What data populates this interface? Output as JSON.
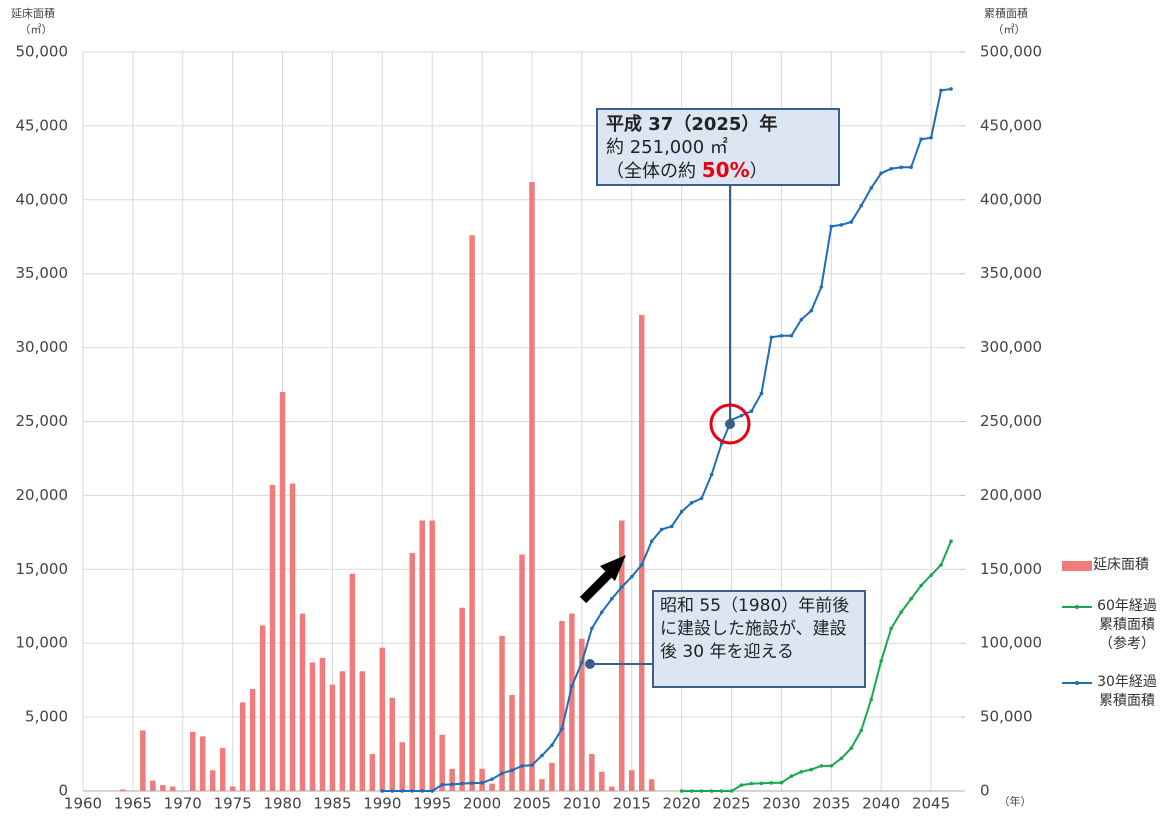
{
  "chart_data": {
    "type": "bar",
    "y_label": "延床面積",
    "y_unit": "（㎡）",
    "y2_label": "累積面積",
    "y2_unit": "（㎡）",
    "x_unit": "（年）",
    "x": [
      1960,
      1961,
      1962,
      1963,
      1964,
      1965,
      1966,
      1967,
      1968,
      1969,
      1970,
      1971,
      1972,
      1973,
      1974,
      1975,
      1976,
      1977,
      1978,
      1979,
      1980,
      1981,
      1982,
      1983,
      1984,
      1985,
      1986,
      1987,
      1988,
      1989,
      1990,
      1991,
      1992,
      1993,
      1994,
      1995,
      1996,
      1997,
      1998,
      1999,
      2000,
      2001,
      2002,
      2003,
      2004,
      2005,
      2006,
      2007,
      2008,
      2009,
      2010,
      2011,
      2012,
      2013,
      2014,
      2015,
      2016,
      2017,
      2018,
      2019,
      2020,
      2021,
      2022,
      2023,
      2024,
      2025,
      2026,
      2027,
      2028,
      2029,
      2030,
      2031,
      2032,
      2033,
      2034,
      2035,
      2036,
      2037,
      2038,
      2039,
      2040,
      2041,
      2042,
      2043,
      2044,
      2045,
      2046,
      2047
    ],
    "xlim": [
      1960,
      2048
    ],
    "xticks": [
      1960,
      1965,
      1970,
      1975,
      1980,
      1985,
      1990,
      1995,
      2000,
      2005,
      2010,
      2015,
      2020,
      2025,
      2030,
      2035,
      2040,
      2045
    ],
    "ylim": [
      0,
      50000
    ],
    "yticks": [
      0,
      {
        "value": 5000,
        "label": "5,000"
      },
      {
        "value": 10000,
        "label": "10,000"
      },
      {
        "value": 15000,
        "label": "15,000"
      },
      {
        "value": 20000,
        "label": "20,000"
      },
      {
        "value": 25000,
        "label": "25,000"
      },
      {
        "value": 30000,
        "label": "30,000"
      },
      {
        "value": 35000,
        "label": "35,000"
      },
      {
        "value": 40000,
        "label": "40,000"
      },
      {
        "value": 45000,
        "label": "45,000"
      },
      {
        "value": 50000,
        "label": "50,000"
      }
    ],
    "y2lim": [
      0,
      500000
    ],
    "y2ticks": [
      0,
      {
        "value": 50000,
        "label": "50,000"
      },
      {
        "value": 100000,
        "label": "100,000"
      },
      {
        "value": 150000,
        "label": "150,000"
      },
      {
        "value": 200000,
        "label": "200,000"
      },
      {
        "value": 250000,
        "label": "250,000"
      },
      {
        "value": 300000,
        "label": "300,000"
      },
      {
        "value": 350000,
        "label": "350,000"
      },
      {
        "value": 400000,
        "label": "400,000"
      },
      {
        "value": 450000,
        "label": "450,000"
      },
      {
        "value": 500000,
        "label": "500,000"
      }
    ],
    "grid": true,
    "legend": "right",
    "series": [
      {
        "name": "延床面積",
        "type": "bar",
        "color": "#ef7b7b",
        "values": [
          null,
          null,
          null,
          null,
          100,
          null,
          4100,
          700,
          400,
          300,
          null,
          4000,
          3700,
          1400,
          2900,
          300,
          6000,
          6900,
          11200,
          20700,
          27000,
          20800,
          12000,
          8700,
          9000,
          7200,
          8100,
          14700,
          8100,
          2500,
          9700,
          6300,
          3300,
          16100,
          18300,
          18300,
          3800,
          1500,
          12400,
          37600,
          1500,
          500,
          10500,
          6500,
          16000,
          41200,
          800,
          1900,
          11500,
          12000,
          10300,
          2500,
          1300,
          300,
          18300,
          1400,
          32200,
          800,
          null,
          null,
          null,
          null,
          null,
          null,
          null,
          null,
          null,
          null,
          null,
          null,
          null,
          null,
          null,
          null,
          null,
          null,
          null,
          null,
          null,
          null,
          null,
          null,
          null,
          null,
          null,
          null,
          null,
          null
        ]
      },
      {
        "name": "60年経過累積面積（参考）",
        "type": "line",
        "axis": "y2",
        "color": "#1aa84c",
        "values": [
          null,
          null,
          null,
          null,
          null,
          null,
          null,
          null,
          null,
          null,
          null,
          null,
          null,
          null,
          null,
          null,
          null,
          null,
          null,
          null,
          null,
          null,
          null,
          null,
          null,
          null,
          null,
          null,
          null,
          null,
          null,
          null,
          null,
          null,
          null,
          null,
          null,
          null,
          null,
          null,
          null,
          null,
          null,
          null,
          null,
          null,
          null,
          null,
          null,
          null,
          null,
          null,
          null,
          null,
          null,
          null,
          null,
          null,
          null,
          null,
          0,
          0,
          0,
          0,
          0,
          0,
          4000,
          5000,
          5200,
          5500,
          5600,
          10000,
          13000,
          14500,
          17000,
          17000,
          22000,
          29000,
          41000,
          62000,
          88000,
          110000,
          121000,
          130000,
          139000,
          146000,
          153000,
          169000
        ]
      },
      {
        "name": "30年経過累積面積",
        "type": "line",
        "axis": "y2",
        "color": "#1f6db4",
        "values": [
          null,
          null,
          null,
          null,
          null,
          null,
          null,
          null,
          null,
          null,
          null,
          null,
          null,
          null,
          null,
          null,
          null,
          null,
          null,
          null,
          null,
          null,
          null,
          null,
          null,
          null,
          null,
          null,
          null,
          null,
          0,
          0,
          0,
          0,
          0,
          0,
          4200,
          4500,
          5000,
          5300,
          5500,
          8000,
          12000,
          14000,
          17000,
          17500,
          24000,
          31000,
          42000,
          71000,
          87000,
          110000,
          121000,
          130000,
          138000,
          145000,
          153000,
          169000,
          177000,
          179000,
          189000,
          195000,
          198000,
          214000,
          235000,
          251000,
          254000,
          257000,
          269000,
          307000,
          308000,
          308000,
          319000,
          325000,
          341000,
          382000,
          383000,
          385000,
          396000,
          408000,
          418000,
          421000,
          422000,
          422000,
          441000,
          442000,
          474000,
          475000
        ]
      }
    ],
    "annotations": [
      {
        "lines": [
          "平成 37（2025）年",
          "約 251,000 ㎡"
        ],
        "prefix": "（全体の約 ",
        "highlight": "50%",
        "suffix": "）"
      },
      {
        "text": "昭和 55（1980）年前後に建設した施設が、建設後 30 年を迎える"
      }
    ]
  }
}
